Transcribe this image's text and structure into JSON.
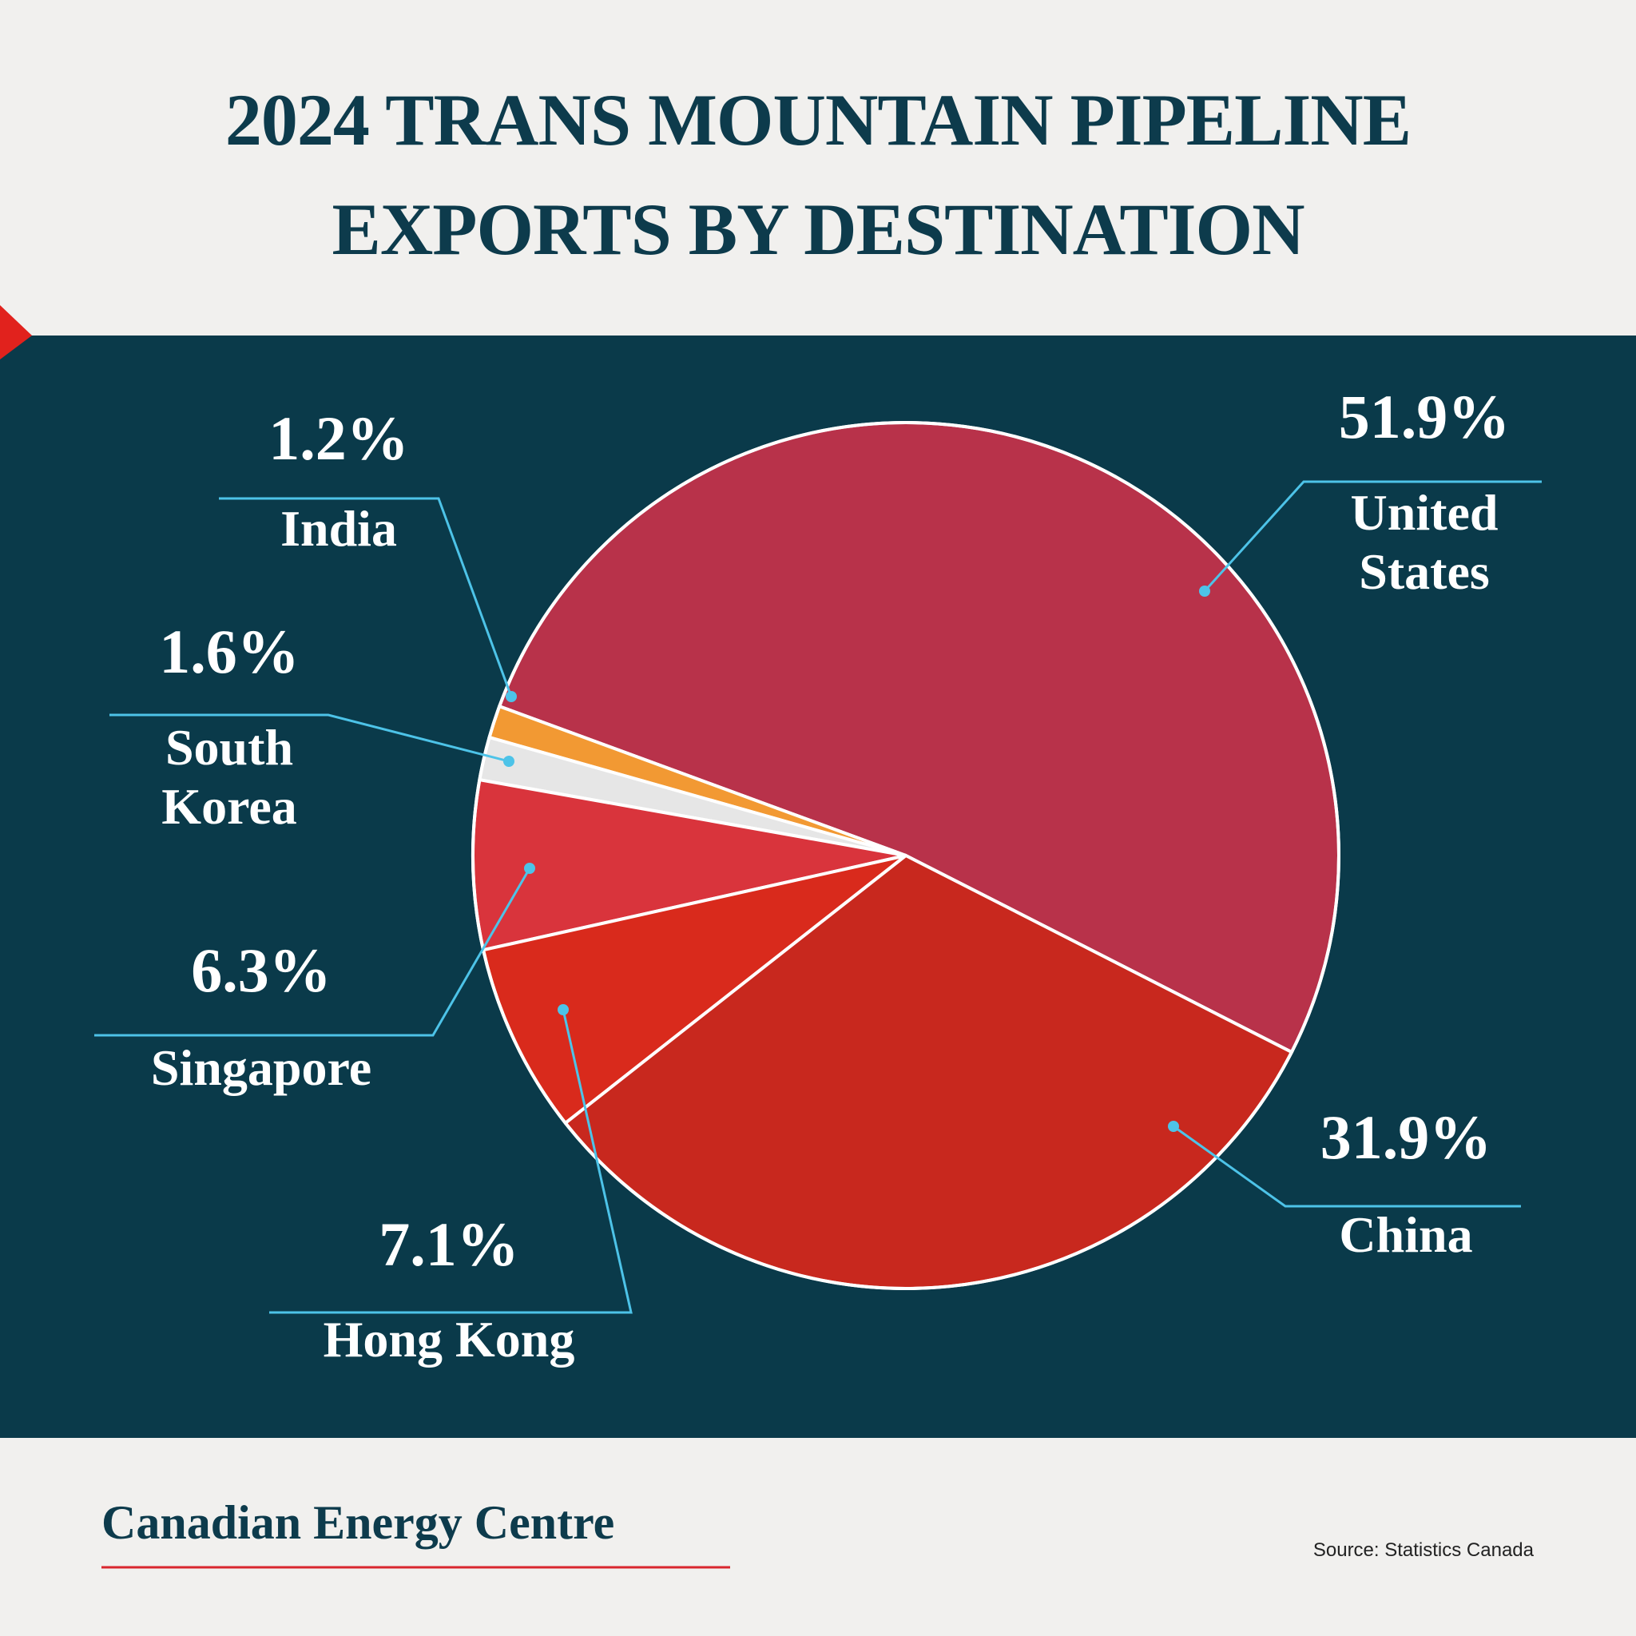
{
  "chart_data": {
    "type": "pie",
    "title": "2024 TRANS MOUNTAIN PIPELINE EXPORTS BY DESTINATION",
    "categories": [
      "United States",
      "India",
      "South Korea",
      "Singapore",
      "Hong Kong",
      "China"
    ],
    "values": [
      51.9,
      1.2,
      1.6,
      6.3,
      7.1,
      31.9
    ],
    "value_labels": [
      "51.9%",
      "1.2%",
      "1.6%",
      "6.3%",
      "7.1%",
      "31.9%"
    ],
    "colors": [
      "#b8324a",
      "#f29933",
      "#e6e6e6",
      "#d9343c",
      "#d92a1c",
      "#c8281e"
    ],
    "brand": "Canadian Energy Centre",
    "source": "Source: Statistics Canada"
  }
}
